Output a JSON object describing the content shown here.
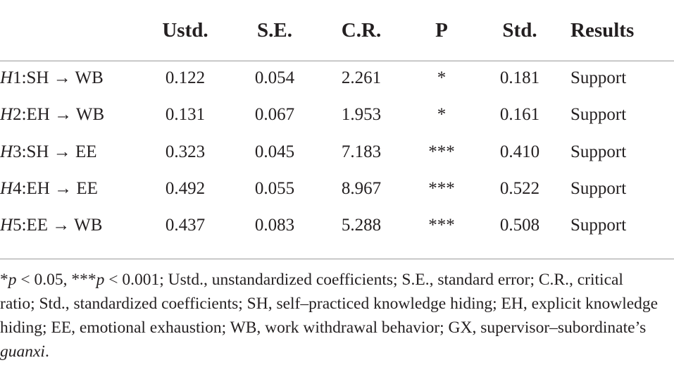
{
  "table": {
    "header": [
      "Ustd.",
      "S.E.",
      "C.R.",
      "P",
      "Std.",
      "Results"
    ],
    "rows": [
      [
        "H1:SH → WB",
        "0.122",
        "0.054",
        "2.261",
        "*",
        "0.181",
        "Support"
      ],
      [
        "H2:EH → WB",
        "0.131",
        "0.067",
        "1.953",
        "*",
        "0.161",
        "Support"
      ],
      [
        "H3:SH → EE",
        "0.323",
        "0.045",
        "7.183",
        "***",
        "0.410",
        "Support"
      ],
      [
        "H4:EH → EE",
        "0.492",
        "0.055",
        "8.967",
        "***",
        "0.522",
        "Support"
      ],
      [
        "H5:EE → WB",
        "0.437",
        "0.083",
        "5.288",
        "***",
        "0.508",
        "Support"
      ]
    ]
  },
  "footnote": [
    {
      "text": "*"
    },
    {
      "text": "p",
      "italic": true
    },
    {
      "text": " < 0.05, ***"
    },
    {
      "text": "p",
      "italic": true
    },
    {
      "text": " < 0.001; Ustd., unstandardized coefficients; S.E., standard error; C.R., critical ratio; Std., standardized coefficients; SH, self–practiced knowledge hiding; EH, explicit knowledge hiding; EE, emotional exhaustion; WB, work withdrawal behavior; GX, supervisor–subordinate’s "
    },
    {
      "text": "guanxi",
      "italic": true
    },
    {
      "text": "."
    }
  ]
}
